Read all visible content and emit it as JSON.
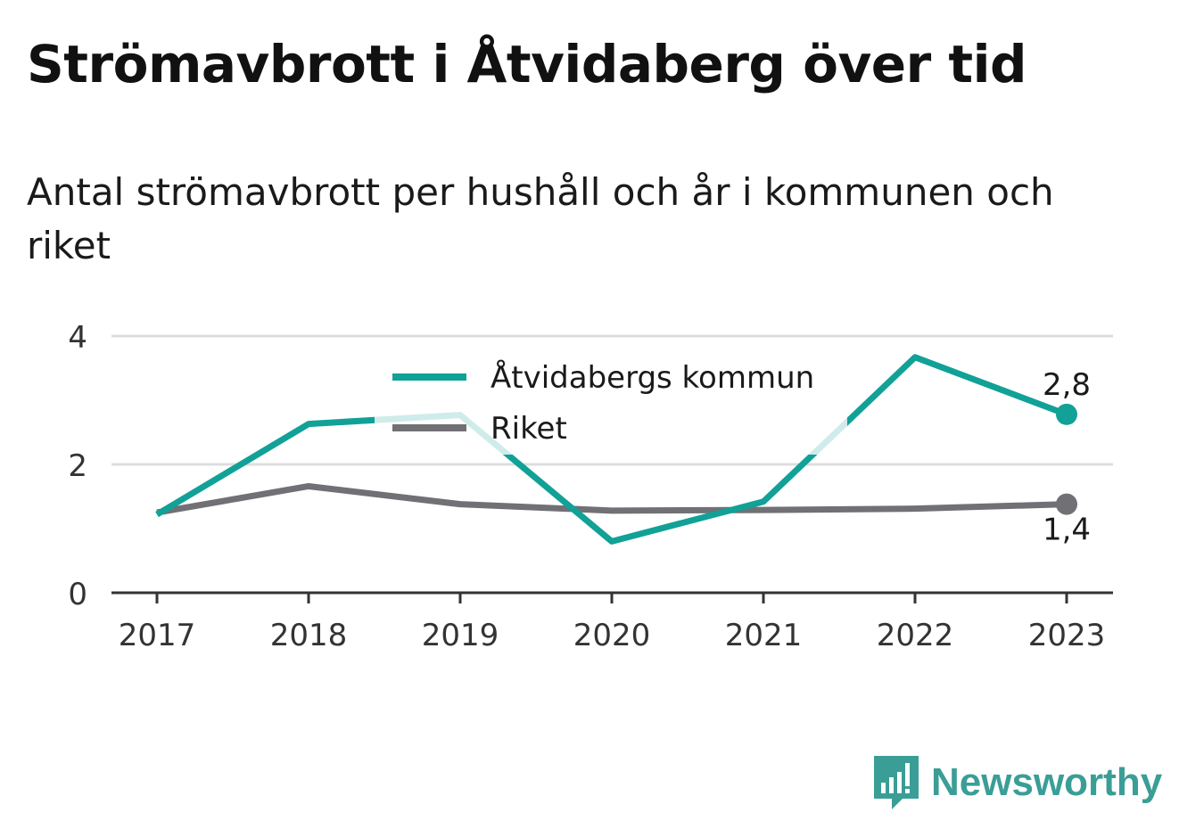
{
  "header": {
    "title": "Strömavbrott i Åtvidaberg över tid",
    "subtitle": "Antal strömavbrott per hushåll och år i kommunen och riket"
  },
  "brand": {
    "name": "Newsworthy",
    "icon": "newsworthy-logo-icon",
    "color": "#3a9e96"
  },
  "chart_data": {
    "type": "line",
    "categories": [
      "2017",
      "2018",
      "2019",
      "2020",
      "2021",
      "2022",
      "2023"
    ],
    "ylim": [
      0,
      4
    ],
    "yticks": [
      {
        "value": 0,
        "label": "0"
      },
      {
        "value": 2,
        "label": "2"
      },
      {
        "value": 4,
        "label": "4"
      }
    ],
    "grid": true,
    "legend_position": "top-center",
    "series": [
      {
        "name": "Åtvidabergs kommun",
        "color": "#11a197",
        "values": [
          1.22,
          2.63,
          2.77,
          0.8,
          1.42,
          3.67,
          2.78
        ],
        "end_label": "2,8"
      },
      {
        "name": "Riket",
        "color": "#707075",
        "values": [
          1.25,
          1.66,
          1.38,
          1.28,
          1.29,
          1.31,
          1.38
        ],
        "end_label": "1,4"
      }
    ]
  }
}
